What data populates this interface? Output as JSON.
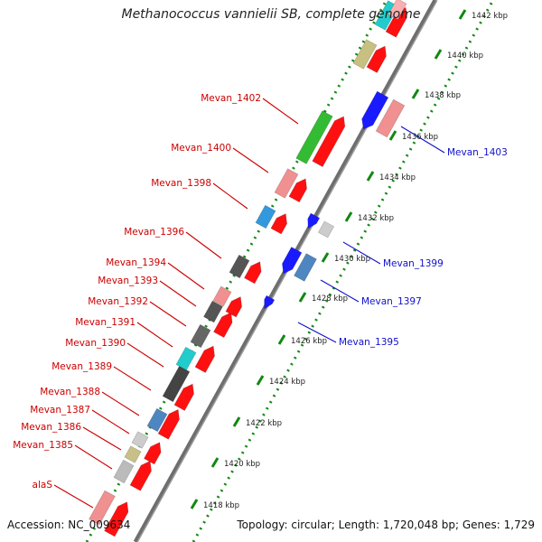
{
  "title": "Methanococcus vannielii SB, complete genome",
  "accession": "Accession: NC_009634",
  "summary": "Topology: circular; Length: 1,720,048 bp; Genes: 1,729",
  "ticks": [
    {
      "label": "1418 kbp"
    },
    {
      "label": "1420 kbp"
    },
    {
      "label": "1422 kbp"
    },
    {
      "label": "1424 kbp"
    },
    {
      "label": "1426 kbp"
    },
    {
      "label": "1428 kbp"
    },
    {
      "label": "1430 kbp"
    },
    {
      "label": "1432 kbp"
    },
    {
      "label": "1434 kbp"
    },
    {
      "label": "1436 kbp"
    },
    {
      "label": "1438 kbp"
    },
    {
      "label": "1440 kbp"
    },
    {
      "label": "1442 kbp"
    }
  ],
  "left_labels": [
    {
      "text": "Mevan_1402"
    },
    {
      "text": "Mevan_1400"
    },
    {
      "text": "Mevan_1398"
    },
    {
      "text": "Mevan_1396"
    },
    {
      "text": "Mevan_1394"
    },
    {
      "text": "Mevan_1393"
    },
    {
      "text": "Mevan_1392"
    },
    {
      "text": "Mevan_1391"
    },
    {
      "text": "Mevan_1390"
    },
    {
      "text": "Mevan_1389"
    },
    {
      "text": "Mevan_1388"
    },
    {
      "text": "Mevan_1387"
    },
    {
      "text": "Mevan_1386"
    },
    {
      "text": "Mevan_1385"
    },
    {
      "text": "alaS"
    }
  ],
  "right_labels": [
    {
      "text": "Mevan_1403"
    },
    {
      "text": "Mevan_1399"
    },
    {
      "text": "Mevan_1397"
    },
    {
      "text": "Mevan_1395"
    }
  ],
  "colors": {
    "backbone": "#7a7a7a",
    "forward_arrow": "#ff1010",
    "reverse_arrow": "#1a1aff",
    "tick": "#118811",
    "left_label": "#cc0000",
    "right_label": "#1010cc"
  }
}
